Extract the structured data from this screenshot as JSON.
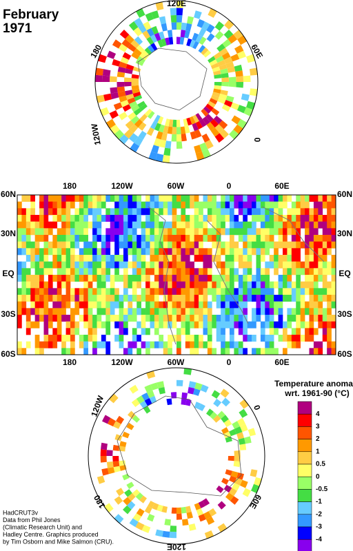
{
  "title": "February",
  "year": "1971",
  "north_map": {
    "labels": [
      "120E",
      "60E",
      "0",
      "120W",
      "180"
    ]
  },
  "main_map": {
    "lon_labels": [
      "180",
      "120W",
      "60W",
      "0",
      "60E"
    ],
    "lat_labels": [
      "60N",
      "30N",
      "EQ",
      "30S",
      "60S"
    ]
  },
  "south_map": {
    "labels": [
      "0",
      "60E",
      "120E",
      "180",
      "120W"
    ]
  },
  "legend": {
    "title": "Temperature anomaly",
    "subtitle": "wrt. 1961-90  (°C)",
    "levels": [
      4,
      3,
      2,
      1,
      0.5,
      0,
      -0.5,
      -1,
      -2,
      -3,
      -4
    ],
    "colors": [
      "#b0007f",
      "#ff0000",
      "#ff5500",
      "#ff9900",
      "#ffcc44",
      "#ffff66",
      "#99ff66",
      "#44dd44",
      "#66ccff",
      "#3399ff",
      "#0000ff",
      "#8800ee"
    ]
  },
  "credits": [
    "HadCRUT3v",
    "Data from Phil Jones",
    "(Climatic Research Unit) and",
    "Hadley Centre.  Graphics produced",
    "by Tim Osborn and Mike Salmon (CRU)."
  ]
}
